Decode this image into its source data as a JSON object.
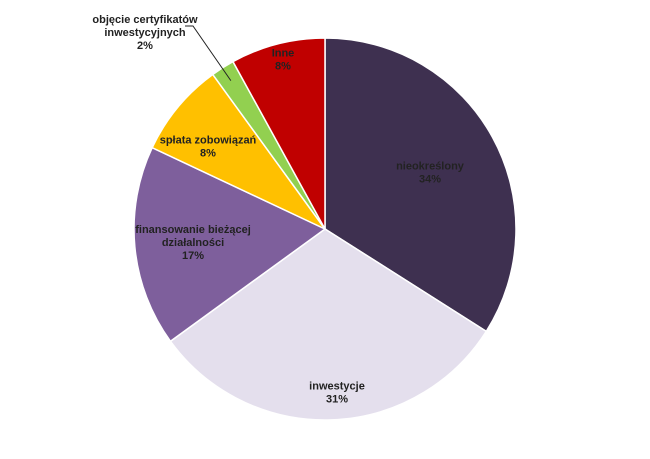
{
  "chart_data": {
    "type": "pie",
    "slices": [
      {
        "label_lines": [
          "nieokreślony"
        ],
        "percent_label": "34%",
        "value": 34,
        "color": "#3e3050"
      },
      {
        "label_lines": [
          "inwestycje"
        ],
        "percent_label": "31%",
        "value": 31,
        "color": "#e4dfed"
      },
      {
        "label_lines": [
          "finansowanie bieżącej",
          "działalności"
        ],
        "percent_label": "17%",
        "value": 17,
        "color": "#7e5f9c"
      },
      {
        "label_lines": [
          "spłata zobowiązań"
        ],
        "percent_label": "8%",
        "value": 8,
        "color": "#ffc000"
      },
      {
        "label_lines": [
          "objęcie certyfikatów",
          "inwestycyjnych"
        ],
        "percent_label": "2%",
        "value": 2,
        "color": "#92d050"
      },
      {
        "label_lines": [
          "Inne"
        ],
        "percent_label": "8%",
        "value": 8,
        "color": "#c00000"
      }
    ],
    "start": "12 o'clock",
    "direction": "clockwise",
    "legend": "none"
  }
}
